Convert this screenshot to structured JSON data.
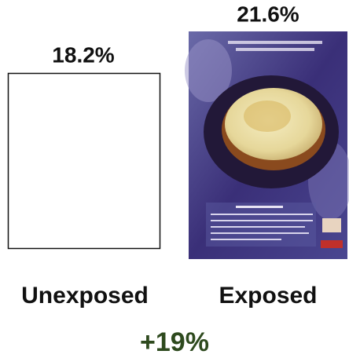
{
  "panels": [
    {
      "value": "18.2%",
      "label": "Unexposed"
    },
    {
      "value": "21.6%",
      "label": "Exposed"
    }
  ],
  "lift": "+19%"
}
